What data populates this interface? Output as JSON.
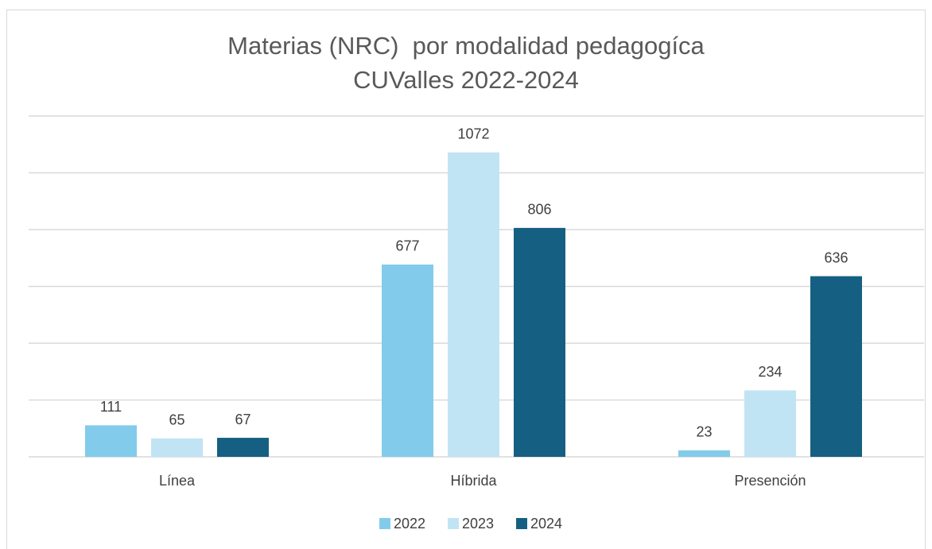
{
  "chart_data": {
    "type": "bar",
    "title": "Materias (NRC)  por modalidad pedagogíca CUValles 2022-2024",
    "categories": [
      "Línea",
      "Híbrida",
      "Presención"
    ],
    "series": [
      {
        "name": "2022",
        "color": "#83cbeb",
        "values": [
          111,
          677,
          23
        ]
      },
      {
        "name": "2023",
        "color": "#c1e4f5",
        "values": [
          65,
          1072,
          234
        ]
      },
      {
        "name": "2024",
        "color": "#156082",
        "values": [
          67,
          806,
          636
        ]
      }
    ],
    "ylim": [
      0,
      1200
    ],
    "yticks": [
      0,
      200,
      400,
      600,
      800,
      1000,
      1200
    ],
    "grid": true,
    "legend": "bottom"
  }
}
